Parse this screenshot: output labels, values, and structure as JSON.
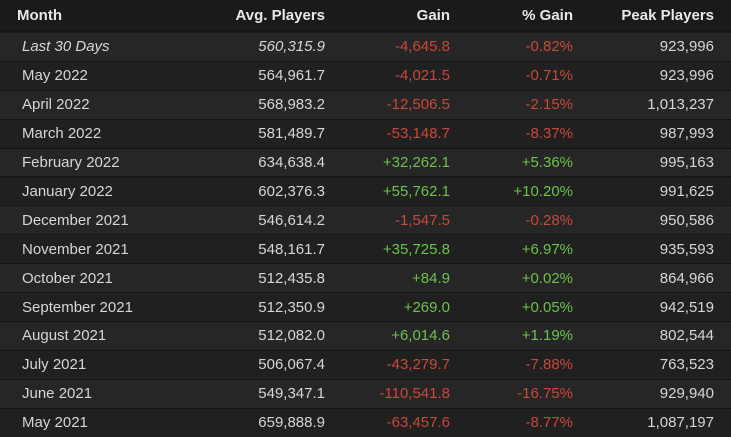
{
  "table": {
    "headers": [
      "Month",
      "Avg. Players",
      "Gain",
      "% Gain",
      "Peak Players"
    ],
    "rows": [
      [
        "Last 30 Days",
        "560,315.9",
        "-4,645.8",
        "-0.82%",
        "923,996"
      ],
      [
        "May 2022",
        "564,961.7",
        "-4,021.5",
        "-0.71%",
        "923,996"
      ],
      [
        "April 2022",
        "568,983.2",
        "-12,506.5",
        "-2.15%",
        "1,013,237"
      ],
      [
        "March 2022",
        "581,489.7",
        "-53,148.7",
        "-8.37%",
        "987,993"
      ],
      [
        "February 2022",
        "634,638.4",
        "+32,262.1",
        "+5.36%",
        "995,163"
      ],
      [
        "January 2022",
        "602,376.3",
        "+55,762.1",
        "+10.20%",
        "991,625"
      ],
      [
        "December 2021",
        "546,614.2",
        "-1,547.5",
        "-0.28%",
        "950,586"
      ],
      [
        "November 2021",
        "548,161.7",
        "+35,725.8",
        "+6.97%",
        "935,593"
      ],
      [
        "October 2021",
        "512,435.8",
        "+84.9",
        "+0.02%",
        "864,966"
      ],
      [
        "September 2021",
        "512,350.9",
        "+269.0",
        "+0.05%",
        "942,519"
      ],
      [
        "August 2021",
        "512,082.0",
        "+6,014.6",
        "+1.19%",
        "802,544"
      ],
      [
        "July 2021",
        "506,067.4",
        "-43,279.7",
        "-7.88%",
        "763,523"
      ],
      [
        "June 2021",
        "549,347.1",
        "-110,541.8",
        "-16.75%",
        "929,940"
      ],
      [
        "May 2021",
        "659,888.9",
        "-63,457.6",
        "-8.77%",
        "1,087,197"
      ]
    ]
  }
}
